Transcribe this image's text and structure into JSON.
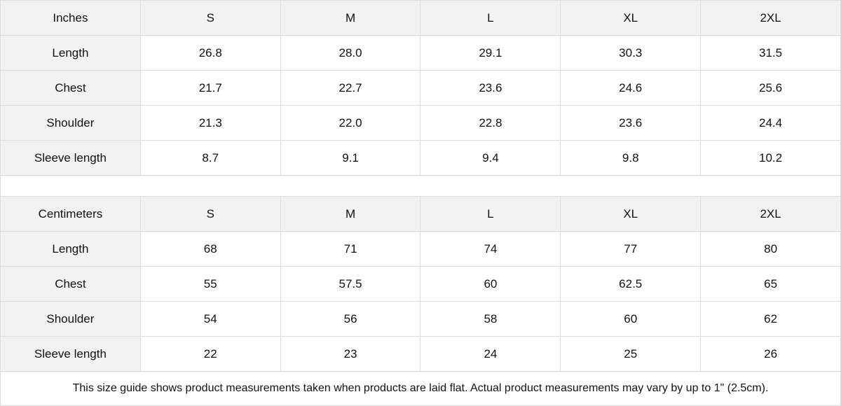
{
  "tables": [
    {
      "unit": "Inches",
      "sizes": [
        "S",
        "M",
        "L",
        "XL",
        "2XL"
      ],
      "rows": [
        {
          "label": "Length",
          "values": [
            "26.8",
            "28.0",
            "29.1",
            "30.3",
            "31.5"
          ]
        },
        {
          "label": "Chest",
          "values": [
            "21.7",
            "22.7",
            "23.6",
            "24.6",
            "25.6"
          ]
        },
        {
          "label": "Shoulder",
          "values": [
            "21.3",
            "22.0",
            "22.8",
            "23.6",
            "24.4"
          ]
        },
        {
          "label": "Sleeve length",
          "values": [
            "8.7",
            "9.1",
            "9.4",
            "9.8",
            "10.2"
          ]
        }
      ]
    },
    {
      "unit": "Centimeters",
      "sizes": [
        "S",
        "M",
        "L",
        "XL",
        "2XL"
      ],
      "rows": [
        {
          "label": "Length",
          "values": [
            "68",
            "71",
            "74",
            "77",
            "80"
          ]
        },
        {
          "label": "Chest",
          "values": [
            "55",
            "57.5",
            "60",
            "62.5",
            "65"
          ]
        },
        {
          "label": "Shoulder",
          "values": [
            "54",
            "56",
            "58",
            "60",
            "62"
          ]
        },
        {
          "label": "Sleeve length",
          "values": [
            "22",
            "23",
            "24",
            "25",
            "26"
          ]
        }
      ]
    }
  ],
  "note": "This size guide shows product measurements taken when products are laid flat.  Actual product measurements may vary by up to 1\" (2.5cm).",
  "colors": {
    "header_bg": "#f2f2f2",
    "border": "#dcdcdc"
  }
}
